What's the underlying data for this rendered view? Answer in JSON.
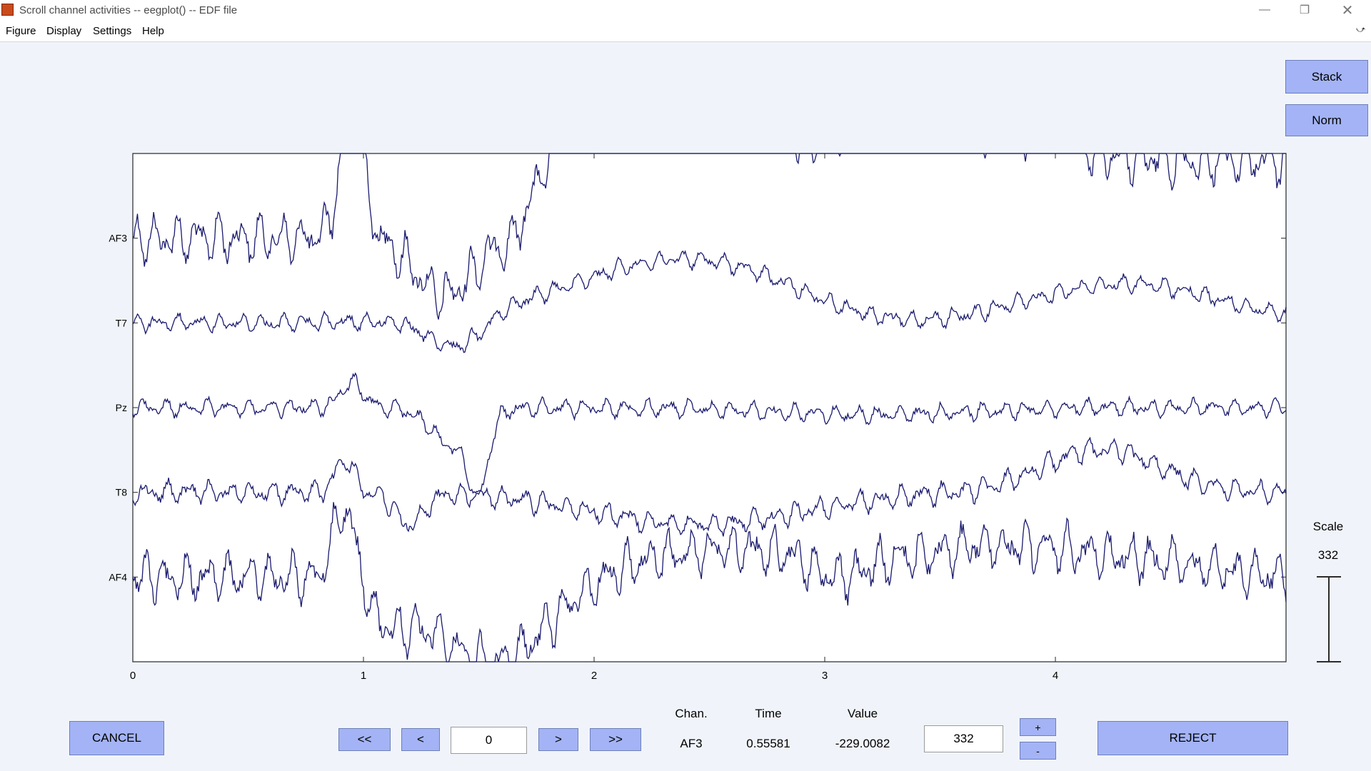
{
  "window": {
    "title": "Scroll channel activities -- eegplot() -- EDF file"
  },
  "menu": [
    "Figure",
    "Display",
    "Settings",
    "Help"
  ],
  "buttons": {
    "stack": "Stack",
    "norm": "Norm",
    "cancel": "CANCEL",
    "first": "<<",
    "prev": "<",
    "next": ">",
    "last": ">>",
    "reject": "REJECT",
    "plus": "+",
    "minus": "-"
  },
  "fields": {
    "start_time": "0",
    "scale": "332"
  },
  "readout": {
    "chan_label": "Chan.",
    "time_label": "Time",
    "value_label": "Value",
    "chan": "AF3",
    "time": "0.55581",
    "value": "-229.0082"
  },
  "scale": {
    "label": "Scale",
    "value": "332"
  },
  "colors": {
    "trace": "#1a1a6e",
    "button": "#a3b3f5",
    "background": "#f0f4fa"
  },
  "chart_data": {
    "type": "line",
    "title": "",
    "xlabel": "",
    "ylabel": "",
    "x_ticks": [
      "0",
      "1",
      "2",
      "3",
      "4"
    ],
    "xlim": [
      0,
      5
    ],
    "channels": [
      "AF3",
      "T7",
      "Pz",
      "T8",
      "AF4"
    ],
    "window_seconds": 5,
    "scale": 332
  }
}
